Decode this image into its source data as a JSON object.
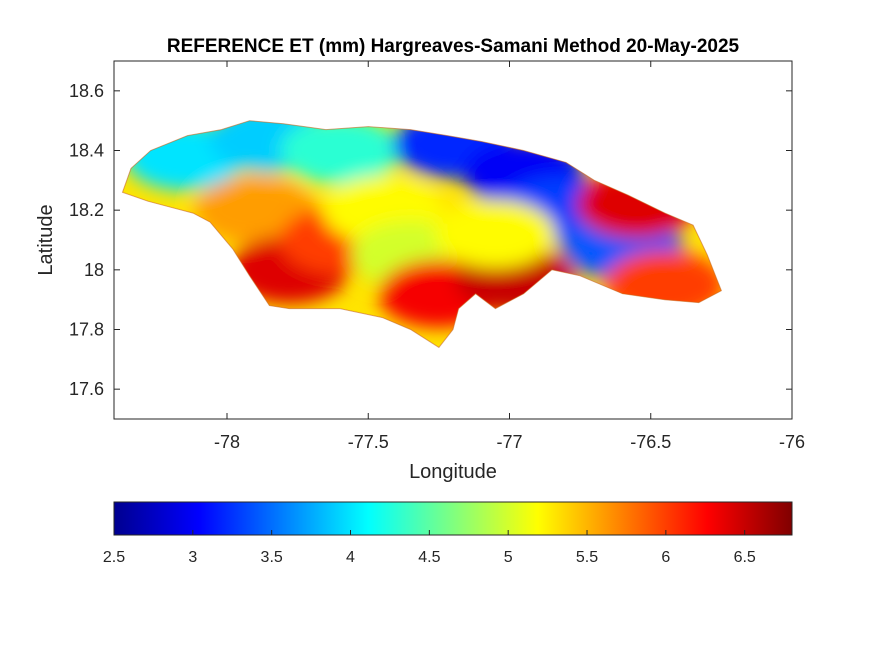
{
  "chart_data": {
    "type": "heatmap",
    "title": "REFERENCE ET (mm) Hargreaves-Samani Method  20-May-2025",
    "xlabel": "Longitude",
    "ylabel": "Latitude",
    "xlim": [
      -78.4,
      -76
    ],
    "ylim": [
      17.5,
      18.7
    ],
    "xticks": [
      -78,
      -77.5,
      -77,
      -76.5,
      -76
    ],
    "yticks": [
      17.6,
      17.8,
      18,
      18.2,
      18.4,
      18.6
    ],
    "xtick_labels": [
      "-78",
      "-77.5",
      "-77",
      "-76.5",
      "-76"
    ],
    "ytick_labels": [
      "17.6",
      "17.8",
      "18",
      "18.2",
      "18.4",
      "18.6"
    ],
    "colormap": "jet",
    "colorbar": {
      "location": "bottom",
      "range": [
        2.5,
        6.8
      ],
      "ticks": [
        2.5,
        3,
        3.5,
        4,
        4.5,
        5,
        5.5,
        6,
        6.5
      ],
      "tick_labels": [
        "2.5",
        "3",
        "3.5",
        "4",
        "4.5",
        "5",
        "5.5",
        "6",
        "6.5"
      ]
    },
    "island_outline": [
      [
        -78.37,
        18.26
      ],
      [
        -78.34,
        18.34
      ],
      [
        -78.27,
        18.4
      ],
      [
        -78.14,
        18.45
      ],
      [
        -78.02,
        18.47
      ],
      [
        -77.92,
        18.5
      ],
      [
        -77.8,
        18.49
      ],
      [
        -77.65,
        18.47
      ],
      [
        -77.5,
        18.48
      ],
      [
        -77.35,
        18.47
      ],
      [
        -77.22,
        18.45
      ],
      [
        -77.1,
        18.43
      ],
      [
        -76.95,
        18.4
      ],
      [
        -76.8,
        18.36
      ],
      [
        -76.7,
        18.3
      ],
      [
        -76.58,
        18.25
      ],
      [
        -76.45,
        18.19
      ],
      [
        -76.35,
        18.15
      ],
      [
        -76.3,
        18.05
      ],
      [
        -76.25,
        17.93
      ],
      [
        -76.33,
        17.89
      ],
      [
        -76.45,
        17.9
      ],
      [
        -76.6,
        17.92
      ],
      [
        -76.75,
        17.98
      ],
      [
        -76.85,
        18.0
      ],
      [
        -76.95,
        17.92
      ],
      [
        -77.05,
        17.87
      ],
      [
        -77.12,
        17.92
      ],
      [
        -77.18,
        17.87
      ],
      [
        -77.2,
        17.8
      ],
      [
        -77.25,
        17.74
      ],
      [
        -77.35,
        17.8
      ],
      [
        -77.45,
        17.84
      ],
      [
        -77.6,
        17.87
      ],
      [
        -77.78,
        17.87
      ],
      [
        -77.85,
        17.88
      ],
      [
        -77.92,
        17.98
      ],
      [
        -77.98,
        18.07
      ],
      [
        -78.06,
        18.16
      ],
      [
        -78.12,
        18.19
      ],
      [
        -78.2,
        18.21
      ],
      [
        -78.28,
        18.23
      ],
      [
        -78.37,
        18.26
      ]
    ],
    "value_zones": [
      {
        "lon": -78.15,
        "lat": 18.38,
        "value": 4.0
      },
      {
        "lon": -77.85,
        "lat": 18.44,
        "value": 3.9
      },
      {
        "lon": -77.6,
        "lat": 18.4,
        "value": 4.3
      },
      {
        "lon": -77.9,
        "lat": 18.2,
        "value": 5.6
      },
      {
        "lon": -77.78,
        "lat": 18.0,
        "value": 6.4
      },
      {
        "lon": -77.6,
        "lat": 18.1,
        "value": 6.0
      },
      {
        "lon": -77.45,
        "lat": 18.2,
        "value": 5.2
      },
      {
        "lon": -77.35,
        "lat": 18.05,
        "value": 5.0
      },
      {
        "lon": -77.25,
        "lat": 17.92,
        "value": 6.3
      },
      {
        "lon": -77.2,
        "lat": 18.42,
        "value": 3.2
      },
      {
        "lon": -76.95,
        "lat": 18.32,
        "value": 3.0
      },
      {
        "lon": -76.82,
        "lat": 18.2,
        "value": 3.3
      },
      {
        "lon": -76.6,
        "lat": 18.08,
        "value": 3.4
      },
      {
        "lon": -76.98,
        "lat": 17.97,
        "value": 6.5
      },
      {
        "lon": -76.55,
        "lat": 18.22,
        "value": 6.4
      },
      {
        "lon": -76.45,
        "lat": 17.95,
        "value": 6.0
      },
      {
        "lon": -77.05,
        "lat": 18.12,
        "value": 5.2
      }
    ]
  }
}
